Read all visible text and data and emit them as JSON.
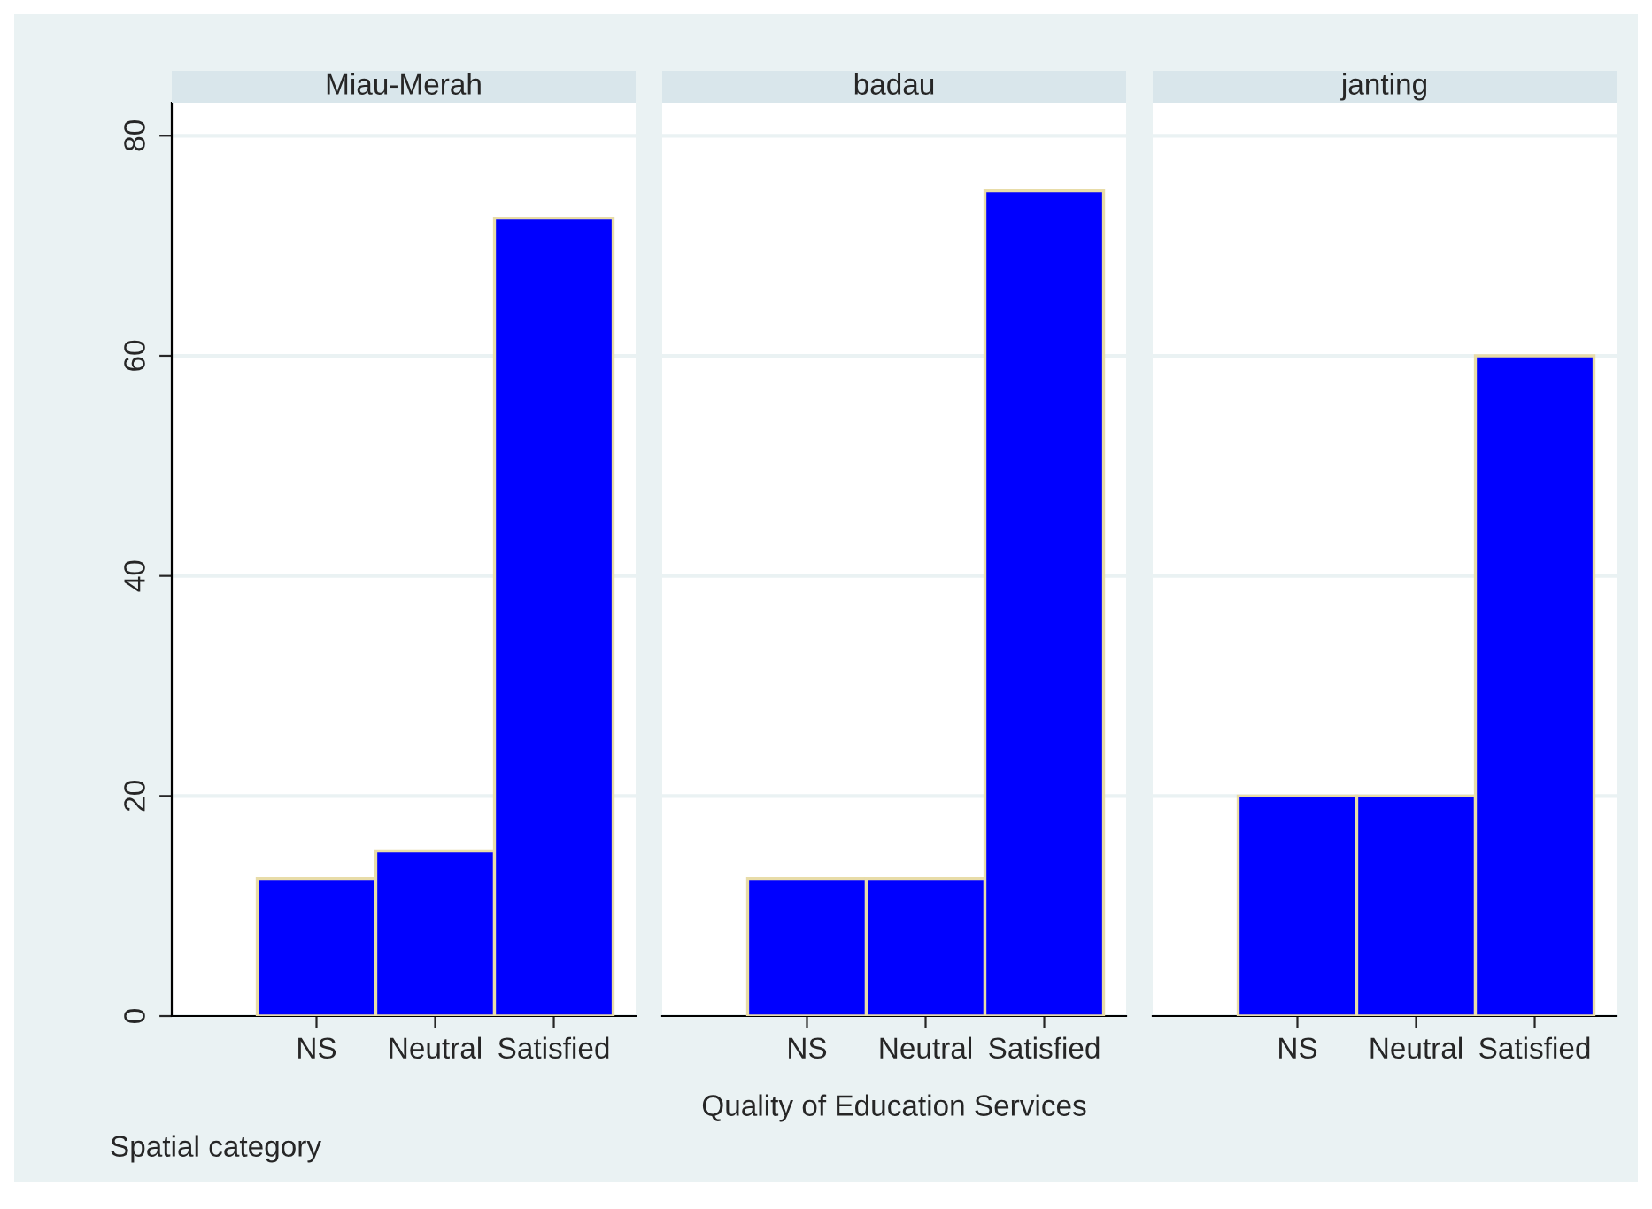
{
  "chart_data": [
    {
      "type": "bar",
      "title": "Miau-Merah",
      "categories": [
        "NS",
        "Neutral",
        "Satisfied"
      ],
      "values": [
        12.5,
        15,
        72.5
      ],
      "color": "#0000ff",
      "ylim": [
        0,
        83
      ],
      "yticks": [
        0,
        20,
        40,
        60,
        80
      ],
      "grid": "y",
      "annotations": [
        "Spatial category"
      ]
    },
    {
      "type": "bar",
      "title": "badau",
      "xlabel": "Quality of Education Services",
      "categories": [
        "NS",
        "Neutral",
        "Satisfied"
      ],
      "values": [
        12.5,
        12.5,
        75
      ],
      "color": "#0000ff",
      "ylim": [
        0,
        83
      ],
      "yticks": [
        0,
        20,
        40,
        60,
        80
      ],
      "grid": "y",
      "tick_labels": "x"
    },
    {
      "type": "bar",
      "title": "janting",
      "categories": [
        "NS",
        "Neutral",
        "Satisfied"
      ],
      "values": [
        20,
        20,
        60
      ],
      "color": "#0000ff",
      "ylim": [
        0,
        83
      ],
      "yticks": [
        0,
        20,
        40,
        60,
        80
      ],
      "grid": "y",
      "tick_labels": "x"
    }
  ]
}
